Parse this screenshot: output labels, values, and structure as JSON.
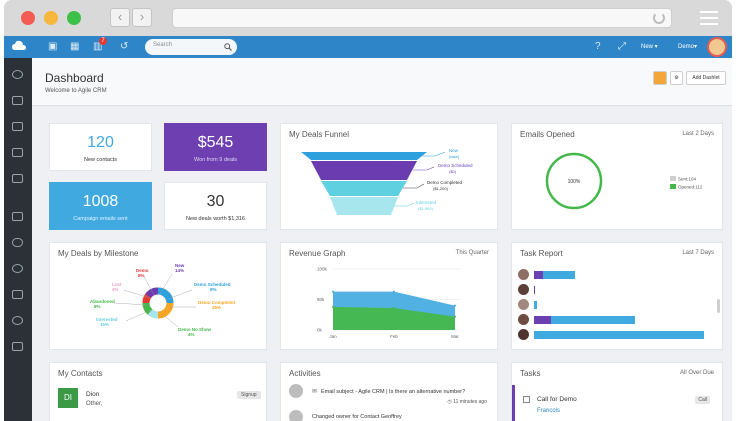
{
  "colors": {
    "brand_blue": "#2e86c9",
    "sidebar_bg": "#2b3137",
    "purple_tile": "#6d3fb0",
    "blue_tile": "#3fa9e0",
    "green": "#44b84b",
    "dot_red": "#f45b54",
    "dot_yellow": "#f6b73c",
    "dot_green": "#3cc04a"
  },
  "topbar": {
    "notification_count": "7",
    "search_placeholder": "Search",
    "new_label": "New",
    "user_label": "Demo"
  },
  "page": {
    "title": "Dashboard",
    "subtitle": "Welcome to Agile CRM",
    "add_dashlet_label": "Add Dashlet"
  },
  "stats": [
    {
      "value": "120",
      "label": "New contacts"
    },
    {
      "value": "$545",
      "label": "Won from 9 deals"
    },
    {
      "value": "1008",
      "label": "Campaign emails sent"
    },
    {
      "value": "30",
      "label": "New deals worth $1,316"
    }
  ],
  "funnel": {
    "title": "My Deals Funnel",
    "labels": [
      {
        "stage": "New",
        "value": "(fake)"
      },
      {
        "stage": "Demo Scheduled",
        "value": "($0)"
      },
      {
        "stage": "Demo Completed",
        "value": "($1,200)"
      },
      {
        "stage": "Interested",
        "value": "($1,900)"
      }
    ]
  },
  "emails": {
    "title": "Emails Opened",
    "aux": "Last 2 Days",
    "center_label": "100%",
    "legend": [
      "Sent:104",
      "Opened:112"
    ]
  },
  "milestone": {
    "title": "My Deals by Milestone",
    "slices": [
      {
        "name": "Demo",
        "value": "8%"
      },
      {
        "name": "New",
        "value": "14%"
      },
      {
        "name": "Lost",
        "value": "4%"
      },
      {
        "name": "Demo Scheduled",
        "value": "8%"
      },
      {
        "name": "Abandoned",
        "value": "8%"
      },
      {
        "name": "Demo Completed",
        "value": "25%"
      },
      {
        "name": "Interested",
        "value": "16%"
      },
      {
        "name": "Demo No Show",
        "value": "4%"
      }
    ]
  },
  "revenue": {
    "title": "Revenue Graph",
    "aux": "This Quarter"
  },
  "chart_data": {
    "type": "area",
    "x": [
      "Jan",
      "Feb",
      "Mar"
    ],
    "ylim": [
      0,
      100000
    ],
    "yticks": [
      "100k",
      "50k",
      "0k"
    ],
    "series": [
      {
        "values": [
          63000,
          63000,
          40000
        ],
        "color": "#3fa9e0"
      },
      {
        "values": [
          38000,
          36000,
          22000
        ],
        "color": "#44b84b"
      }
    ],
    "stacked": false,
    "grid": true
  },
  "task_report": {
    "title": "Task Report",
    "aux": "Last 7 Days",
    "rows": [
      {
        "pending": 0.05,
        "done": 0.2
      },
      {
        "pending": 0.0,
        "done": 0.0
      },
      {
        "pending": 0.0,
        "done": 0.02
      },
      {
        "pending": 0.1,
        "done": 0.55
      },
      {
        "pending": 0.0,
        "done": 1.0
      }
    ]
  },
  "contacts": {
    "title": "My Contacts",
    "items": [
      {
        "initials": "DI",
        "name": "Dion",
        "role": "Other,",
        "tag": "Signup"
      }
    ]
  },
  "activities": {
    "title": "Activities",
    "items": [
      {
        "text": "Email subject - Agile CRM | Is there an alternative number?",
        "time": "11 minutes ago"
      },
      {
        "text": "Changed owner for Contact Geoffrey",
        "time": ""
      }
    ]
  },
  "tasks": {
    "title": "Tasks",
    "aux": "All Over Due",
    "items": [
      {
        "title": "Call for Demo",
        "badge": "Call",
        "person": "Francois"
      }
    ]
  }
}
